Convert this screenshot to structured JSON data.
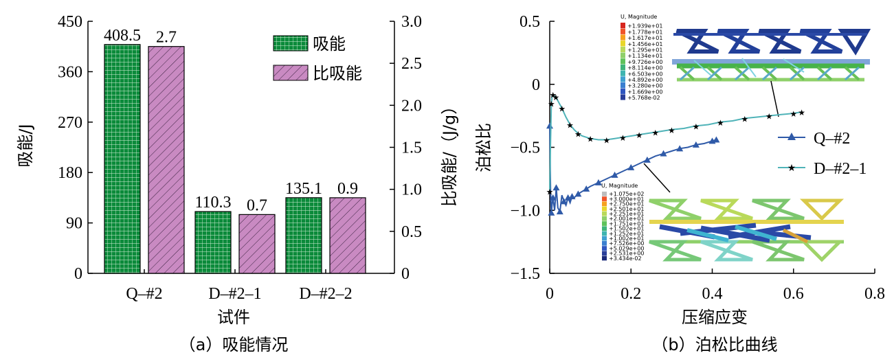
{
  "chart_data": [
    {
      "type": "bar",
      "caption": "（a）吸能情况",
      "categories": [
        "Q–#2",
        "D–#2–1",
        "D–#2–2"
      ],
      "xlabel": "试件",
      "ylabel": "吸能/J",
      "y2label": "比吸能/（J/g）",
      "ylim": [
        0,
        450
      ],
      "y2lim": [
        0,
        3.0
      ],
      "yticks": [
        "0",
        "90",
        "180",
        "270",
        "360",
        "450"
      ],
      "y2ticks": [
        "0",
        "0.5",
        "1.0",
        "1.5",
        "2.0",
        "2.5",
        "3.0"
      ],
      "series": [
        {
          "name": "吸能",
          "axis": "left",
          "values": [
            408.5,
            110.3,
            135.1
          ],
          "labels": [
            "408.5",
            "110.3",
            "135.1"
          ],
          "color": "#0b8a3a",
          "pattern": "grid"
        },
        {
          "name": "比吸能",
          "axis": "right",
          "values": [
            2.7,
            0.7,
            0.9
          ],
          "labels": [
            "2.7",
            "0.7",
            "0.9"
          ],
          "color": "#c98ac2",
          "pattern": "hatch"
        }
      ],
      "legend": "top-right",
      "grid": false
    },
    {
      "type": "line",
      "caption": "（b）泊松比曲线",
      "xlabel": "压缩应变",
      "ylabel": "泊松比",
      "xlim": [
        0,
        0.8
      ],
      "ylim": [
        -1.5,
        0.5
      ],
      "xticks": [
        "0",
        "0.2",
        "0.4",
        "0.6",
        "0.8"
      ],
      "yticks": [
        "−1.5",
        "−1.0",
        "−0.5",
        "0",
        "0.5"
      ],
      "legend": "right",
      "grid": false,
      "series": [
        {
          "name": "Q–#2",
          "color": "#2f5aa8",
          "marker": "triangle",
          "x": [
            0,
            0.002,
            0.004,
            0.006,
            0.008,
            0.012,
            0.016,
            0.02,
            0.025,
            0.03,
            0.035,
            0.04,
            0.045,
            0.05,
            0.055,
            0.06,
            0.07,
            0.08,
            0.09,
            0.1,
            0.12,
            0.14,
            0.16,
            0.18,
            0.2,
            0.22,
            0.24,
            0.26,
            0.28,
            0.3,
            0.32,
            0.34,
            0.36,
            0.38,
            0.4,
            0.41
          ],
          "y": [
            -0.33,
            -0.85,
            -1.02,
            -0.95,
            -0.9,
            -1.0,
            -0.82,
            -0.98,
            -1.01,
            -0.88,
            -0.93,
            -0.96,
            -0.9,
            -0.94,
            -0.89,
            -0.9,
            -0.87,
            -0.85,
            -0.83,
            -0.81,
            -0.78,
            -0.75,
            -0.72,
            -0.69,
            -0.66,
            -0.63,
            -0.6,
            -0.57,
            -0.55,
            -0.53,
            -0.51,
            -0.5,
            -0.48,
            -0.47,
            -0.45,
            -0.44
          ]
        },
        {
          "name": "D–#2–1",
          "color": "#4fb3b8",
          "marker": "star",
          "x": [
            0,
            0.002,
            0.004,
            0.006,
            0.008,
            0.01,
            0.015,
            0.02,
            0.03,
            0.04,
            0.05,
            0.06,
            0.07,
            0.08,
            0.1,
            0.12,
            0.14,
            0.16,
            0.18,
            0.2,
            0.22,
            0.24,
            0.26,
            0.28,
            0.3,
            0.33,
            0.36,
            0.39,
            0.42,
            0.45,
            0.48,
            0.51,
            0.54,
            0.57,
            0.6,
            0.62
          ],
          "y": [
            -0.85,
            -0.45,
            -0.15,
            -0.09,
            -0.08,
            -0.09,
            -0.1,
            -0.13,
            -0.19,
            -0.26,
            -0.32,
            -0.36,
            -0.39,
            -0.41,
            -0.43,
            -0.44,
            -0.44,
            -0.43,
            -0.42,
            -0.41,
            -0.4,
            -0.39,
            -0.38,
            -0.37,
            -0.36,
            -0.35,
            -0.33,
            -0.32,
            -0.3,
            -0.29,
            -0.27,
            -0.26,
            -0.25,
            -0.24,
            -0.23,
            -0.22
          ]
        }
      ],
      "insets": [
        {
          "title": "U, Magnitude",
          "legend_values": [
            "+1.939e+01",
            "+1.778e+01",
            "+1.617e+01",
            "+1.456e+01",
            "+1.295e+01",
            "+1.134e+01",
            "+9.726e+00",
            "+8.114e+00",
            "+6.503e+00",
            "+4.892e+00",
            "+3.280e+00",
            "+1.669e+00",
            "+5.768e-02"
          ]
        },
        {
          "title": "U, Magnitude",
          "legend_values": [
            "+1.075e+02",
            "+3.000e+01",
            "+2.750e+01",
            "+2.501e+01",
            "+2.251e+01",
            "+2.001e+01",
            "+1.751e+01",
            "+1.502e+01",
            "+1.252e+01",
            "+1.002e+01",
            "+7.526e+00",
            "+5.029e+00",
            "+2.531e+00",
            "+3.434e-02"
          ]
        }
      ]
    }
  ]
}
